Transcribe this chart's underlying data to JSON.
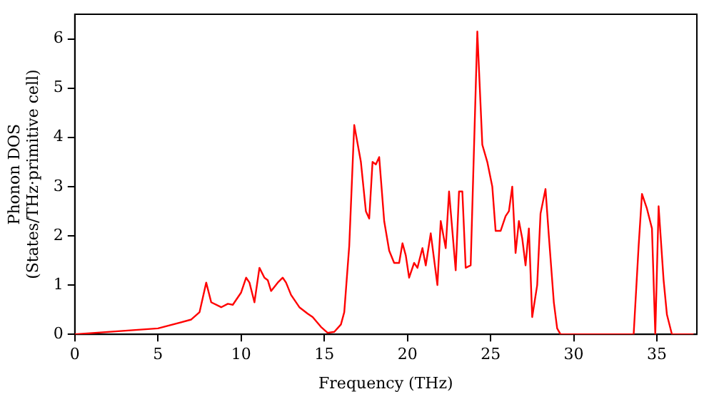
{
  "chart_data": {
    "type": "line",
    "xlabel": "Frequency (THz)",
    "ylabel": "Phonon DOS\n(States/THz·primitive cell)",
    "x": [
      0,
      5,
      7,
      7.5,
      7.9,
      8.2,
      8.8,
      9.2,
      9.5,
      10.0,
      10.3,
      10.5,
      10.8,
      11.1,
      11.4,
      11.6,
      11.8,
      12.2,
      12.5,
      12.7,
      13,
      13.5,
      14.0,
      14.3,
      14.8,
      15.2,
      15.6,
      16.0,
      16.2,
      16.5,
      16.8,
      17.2,
      17.5,
      17.7,
      17.9,
      18.1,
      18.3,
      18.6,
      18.9,
      19.2,
      19.5,
      19.7,
      19.9,
      20.1,
      20.4,
      20.6,
      20.9,
      21.1,
      21.4,
      21.8,
      22.0,
      22.3,
      22.5,
      22.9,
      23.1,
      23.3,
      23.5,
      23.8,
      24.2,
      24.5,
      24.8,
      25.1,
      25.3,
      25.6,
      25.9,
      26.1,
      26.3,
      26.5,
      26.7,
      26.9,
      27.1,
      27.3,
      27.5,
      27.8,
      28.0,
      28.3,
      28.5,
      28.8,
      29.0,
      29.2,
      33.6,
      33.9,
      34.1,
      34.4,
      34.7,
      34.9,
      35.1,
      35.4,
      35.6,
      35.9,
      37.2
    ],
    "series": [
      {
        "color": "#ff0000",
        "values": [
          0,
          0.12,
          0.3,
          0.45,
          1.05,
          0.65,
          0.55,
          0.62,
          0.6,
          0.85,
          1.15,
          1.05,
          0.65,
          1.35,
          1.15,
          1.1,
          0.88,
          1.05,
          1.15,
          1.05,
          0.8,
          0.55,
          0.42,
          0.35,
          0.15,
          0.03,
          0.05,
          0.2,
          0.45,
          1.8,
          4.25,
          3.5,
          2.5,
          2.35,
          3.5,
          3.45,
          3.6,
          2.3,
          1.7,
          1.45,
          1.45,
          1.85,
          1.6,
          1.15,
          1.45,
          1.35,
          1.75,
          1.4,
          2.05,
          1.0,
          2.3,
          1.75,
          2.9,
          1.3,
          2.9,
          2.9,
          1.35,
          1.4,
          6.15,
          3.85,
          3.5,
          3.0,
          2.1,
          2.1,
          2.4,
          2.5,
          3.0,
          1.65,
          2.3,
          1.95,
          1.4,
          2.15,
          0.35,
          1.0,
          2.45,
          2.95,
          2.0,
          0.65,
          0.12,
          0,
          0,
          1.8,
          2.85,
          2.55,
          2.15,
          0,
          2.6,
          1.1,
          0.4,
          0,
          0
        ]
      }
    ],
    "xlim": [
      0,
      37.4
    ],
    "xticks": [
      0,
      5,
      10,
      15,
      20,
      25,
      30,
      35
    ],
    "ylim": [
      0,
      6.5
    ],
    "yticks": [
      0,
      1,
      2,
      3,
      4,
      5,
      6
    ],
    "grid": false,
    "legend": false,
    "marker": "none",
    "line_style": "solid"
  }
}
